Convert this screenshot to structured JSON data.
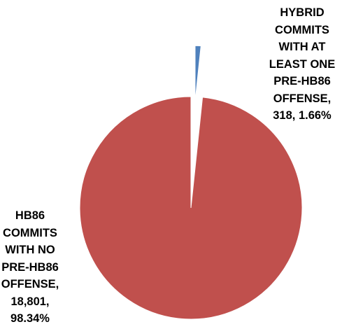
{
  "chart_data": {
    "type": "pie",
    "title": "",
    "slices": [
      {
        "name": "HYBRID COMMITS WITH AT LEAST ONE PRE-HB86 OFFENSE",
        "value": 318,
        "percent": 1.66,
        "color": "#4F81BD",
        "exploded": true,
        "label": "HYBRID\nCOMMITS\nWITH AT\nLEAST ONE\nPRE-HB86\nOFFENSE,\n318, 1.66%"
      },
      {
        "name": "HB86 COMMITS WITH NO PRE-HB86 OFFENSE",
        "value": 18801,
        "percent": 98.34,
        "color": "#C0504D",
        "exploded": false,
        "label": "HB86\nCOMMITS\nWITH NO\nPRE-HB86\nOFFENSE,\n18,801,\n98.34%"
      }
    ],
    "legend": "none"
  }
}
